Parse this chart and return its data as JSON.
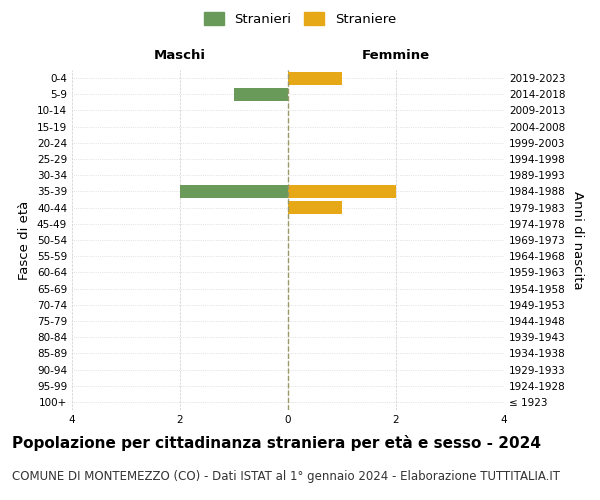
{
  "age_groups": [
    "100+",
    "95-99",
    "90-94",
    "85-89",
    "80-84",
    "75-79",
    "70-74",
    "65-69",
    "60-64",
    "55-59",
    "50-54",
    "45-49",
    "40-44",
    "35-39",
    "30-34",
    "25-29",
    "20-24",
    "15-19",
    "10-14",
    "5-9",
    "0-4"
  ],
  "birth_years": [
    "≤ 1923",
    "1924-1928",
    "1929-1933",
    "1934-1938",
    "1939-1943",
    "1944-1948",
    "1949-1953",
    "1954-1958",
    "1959-1963",
    "1964-1968",
    "1969-1973",
    "1974-1978",
    "1979-1983",
    "1984-1988",
    "1989-1993",
    "1994-1998",
    "1999-2003",
    "2004-2008",
    "2009-2013",
    "2014-2018",
    "2019-2023"
  ],
  "males": [
    0,
    0,
    0,
    0,
    0,
    0,
    0,
    0,
    0,
    0,
    0,
    0,
    0,
    2,
    0,
    0,
    0,
    0,
    0,
    1,
    0
  ],
  "females": [
    0,
    0,
    0,
    0,
    0,
    0,
    0,
    0,
    0,
    0,
    0,
    0,
    1,
    2,
    0,
    0,
    0,
    0,
    0,
    0,
    1
  ],
  "male_color": "#6a9a5a",
  "female_color": "#e6a817",
  "male_label": "Stranieri",
  "female_label": "Straniere",
  "xlim": [
    -4,
    4
  ],
  "xticks": [
    -4,
    -2,
    0,
    2,
    4
  ],
  "xlabel_left": "Maschi",
  "xlabel_right": "Femmine",
  "ylabel_left": "Fasce di età",
  "ylabel_right": "Anni di nascita",
  "title": "Popolazione per cittadinanza straniera per età e sesso - 2024",
  "subtitle": "COMUNE DI MONTEMEZZO (CO) - Dati ISTAT al 1° gennaio 2024 - Elaborazione TUTTITALIA.IT",
  "background_color": "#ffffff",
  "grid_color": "#cccccc",
  "center_line_color": "#999966",
  "bar_height": 0.8,
  "title_fontsize": 11,
  "subtitle_fontsize": 8.5,
  "axis_label_fontsize": 9.5,
  "tick_fontsize": 7.5,
  "legend_fontsize": 9.5,
  "maschi_femmine_fontsize": 9.5
}
